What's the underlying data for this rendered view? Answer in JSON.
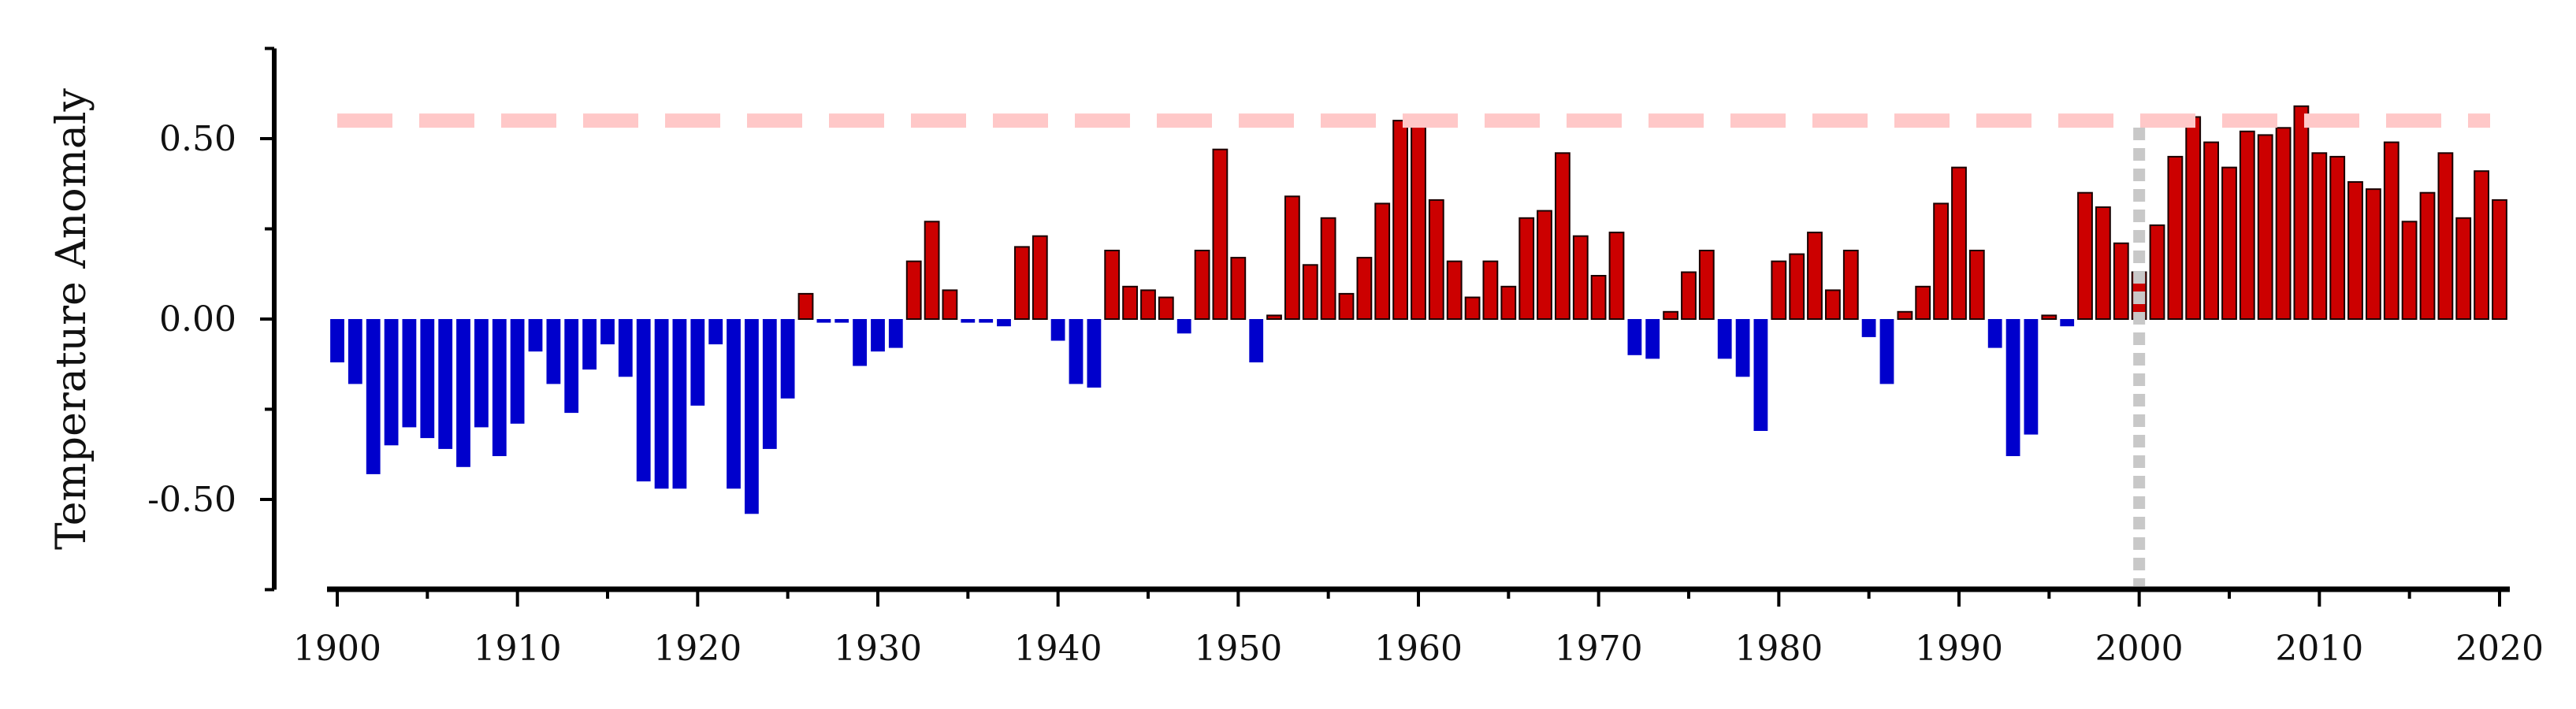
{
  "chart_data": {
    "type": "bar",
    "title": "",
    "xlabel": "",
    "ylabel": "Temperature Anomaly",
    "xlim": [
      1900,
      2020
    ],
    "ylim": [
      -0.75,
      0.75
    ],
    "x_ticks": [
      1900,
      1910,
      1920,
      1930,
      1940,
      1950,
      1960,
      1970,
      1980,
      1990,
      2000,
      2010,
      2020
    ],
    "x_tick_labels": [
      "1900",
      "1910",
      "1920",
      "1930",
      "1940",
      "1950",
      "1960",
      "1970",
      "1980",
      "1990",
      "2000",
      "2010",
      "2020"
    ],
    "y_ticks": [
      -0.5,
      0.0,
      0.5
    ],
    "y_tick_labels": [
      "-0.50",
      "0.00",
      "0.50"
    ],
    "grid": false,
    "colors": {
      "positive": "#cc0000",
      "negative": "#0000cc",
      "reference_line": "#ffc8c8",
      "marker_line": "#c8c8c8",
      "axis": "#000000"
    },
    "reference_line_y": 0.55,
    "vertical_marker_x": 2000,
    "years": [
      1900,
      1901,
      1902,
      1903,
      1904,
      1905,
      1906,
      1907,
      1908,
      1909,
      1910,
      1911,
      1912,
      1913,
      1914,
      1915,
      1916,
      1917,
      1918,
      1919,
      1920,
      1921,
      1922,
      1923,
      1924,
      1925,
      1926,
      1927,
      1928,
      1929,
      1930,
      1931,
      1932,
      1933,
      1934,
      1935,
      1936,
      1937,
      1938,
      1939,
      1940,
      1941,
      1942,
      1943,
      1944,
      1945,
      1946,
      1947,
      1948,
      1949,
      1950,
      1951,
      1952,
      1953,
      1954,
      1955,
      1956,
      1957,
      1958,
      1959,
      1960,
      1961,
      1962,
      1963,
      1964,
      1965,
      1966,
      1967,
      1968,
      1969,
      1970,
      1971,
      1972,
      1973,
      1974,
      1975,
      1976,
      1977,
      1978,
      1979,
      1980,
      1981,
      1982,
      1983,
      1984,
      1985,
      1986,
      1987,
      1988,
      1989,
      1990,
      1991,
      1992,
      1993,
      1994,
      1995,
      1996,
      1997,
      1998,
      1999,
      2000,
      2001,
      2002,
      2003,
      2004,
      2005,
      2006,
      2007,
      2008,
      2009,
      2010,
      2011,
      2012,
      2013,
      2014,
      2015,
      2016,
      2017,
      2018,
      2019,
      2020
    ],
    "values": [
      -0.12,
      -0.18,
      -0.43,
      -0.35,
      -0.3,
      -0.33,
      -0.36,
      -0.41,
      -0.3,
      -0.38,
      -0.29,
      -0.09,
      -0.18,
      -0.26,
      -0.14,
      -0.07,
      -0.16,
      -0.45,
      -0.47,
      -0.47,
      -0.24,
      -0.07,
      -0.47,
      -0.54,
      -0.36,
      -0.22,
      0.07,
      -0.01,
      -0.01,
      -0.13,
      -0.09,
      -0.08,
      0.16,
      0.27,
      0.08,
      -0.01,
      -0.01,
      -0.02,
      0.2,
      0.23,
      -0.06,
      -0.18,
      -0.19,
      0.19,
      0.09,
      0.08,
      0.06,
      -0.04,
      0.19,
      0.47,
      0.17,
      -0.12,
      0.01,
      0.34,
      0.15,
      0.28,
      0.07,
      0.17,
      0.32,
      0.55,
      0.54,
      0.33,
      0.16,
      0.06,
      0.16,
      0.09,
      0.28,
      0.3,
      0.46,
      0.23,
      0.12,
      0.24,
      -0.1,
      -0.11,
      0.02,
      0.13,
      0.19,
      -0.11,
      -0.16,
      -0.31,
      0.16,
      0.18,
      0.24,
      0.08,
      0.19,
      -0.05,
      -0.18,
      0.02,
      0.09,
      0.32,
      0.42,
      0.19,
      -0.08,
      -0.38,
      -0.32,
      0.01,
      -0.02,
      0.35,
      0.31,
      0.21,
      0.13,
      0.26,
      0.45,
      0.56,
      0.49,
      0.42,
      0.52,
      0.51,
      0.53,
      0.59,
      0.46,
      0.45,
      0.38,
      0.36,
      0.49,
      0.27,
      0.35,
      0.46,
      0.28,
      0.41,
      0.33
    ]
  }
}
